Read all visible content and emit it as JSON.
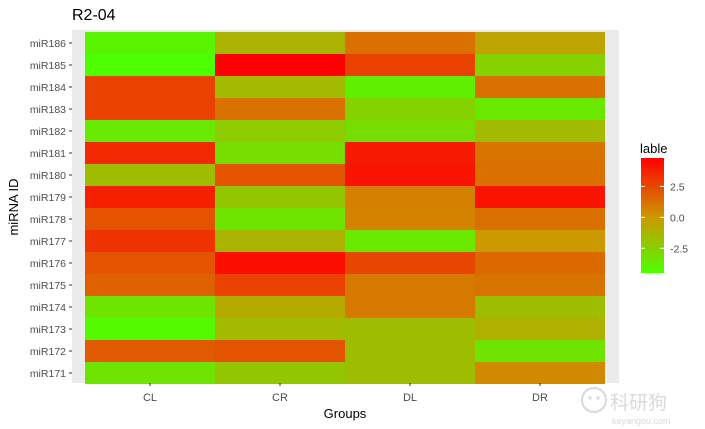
{
  "chart_data": {
    "type": "heatmap",
    "title": "R2-04",
    "xlabel": "Groups",
    "ylabel": "miRNA ID",
    "x": [
      "CL",
      "CR",
      "DL",
      "DR"
    ],
    "y": [
      "miR171",
      "miR172",
      "miR173",
      "miR174",
      "miR175",
      "miR176",
      "miR177",
      "miR178",
      "miR179",
      "miR180",
      "miR181",
      "miR182",
      "miR183",
      "miR184",
      "miR185",
      "miR186"
    ],
    "values": [
      [
        -3.3,
        -2.0,
        -1.6,
        0.5
      ],
      [
        2.0,
        2.2,
        -1.6,
        -3.3
      ],
      [
        -4.3,
        -1.5,
        -1.6,
        -1.0
      ],
      [
        -3.3,
        -0.8,
        1.0,
        -1.6
      ],
      [
        1.8,
        2.8,
        1.0,
        1.2
      ],
      [
        2.2,
        4.4,
        2.6,
        1.5
      ],
      [
        3.2,
        -1.2,
        -3.5,
        0.0
      ],
      [
        2.2,
        -3.3,
        0.7,
        1.3
      ],
      [
        3.8,
        -2.0,
        0.8,
        4.2
      ],
      [
        -1.6,
        2.2,
        4.2,
        1.3
      ],
      [
        3.5,
        -3.0,
        4.0,
        1.2
      ],
      [
        -3.5,
        -2.2,
        -3.0,
        -1.5
      ],
      [
        2.8,
        1.3,
        -2.5,
        -3.5
      ],
      [
        2.8,
        -1.5,
        -3.8,
        1.3
      ],
      [
        -4.5,
        4.8,
        2.8,
        -2.5
      ],
      [
        -4.0,
        -1.2,
        1.3,
        -0.5
      ]
    ],
    "legend": {
      "title": "lable",
      "ticks": [
        2.5,
        0.0,
        -2.5
      ],
      "tick_labels": [
        "2.5",
        "0.0",
        "-2.5"
      ],
      "min": -4.5,
      "max": 4.8,
      "placement": "right"
    },
    "color_scale": {
      "low": "#4dff00",
      "mid": "#cc9900",
      "high": "#ff0000",
      "midpoint": 0
    },
    "panel_background": "#ebebeb",
    "grid": true
  },
  "watermark": {
    "text": "科研狗",
    "url_text": "keyangou.com"
  }
}
